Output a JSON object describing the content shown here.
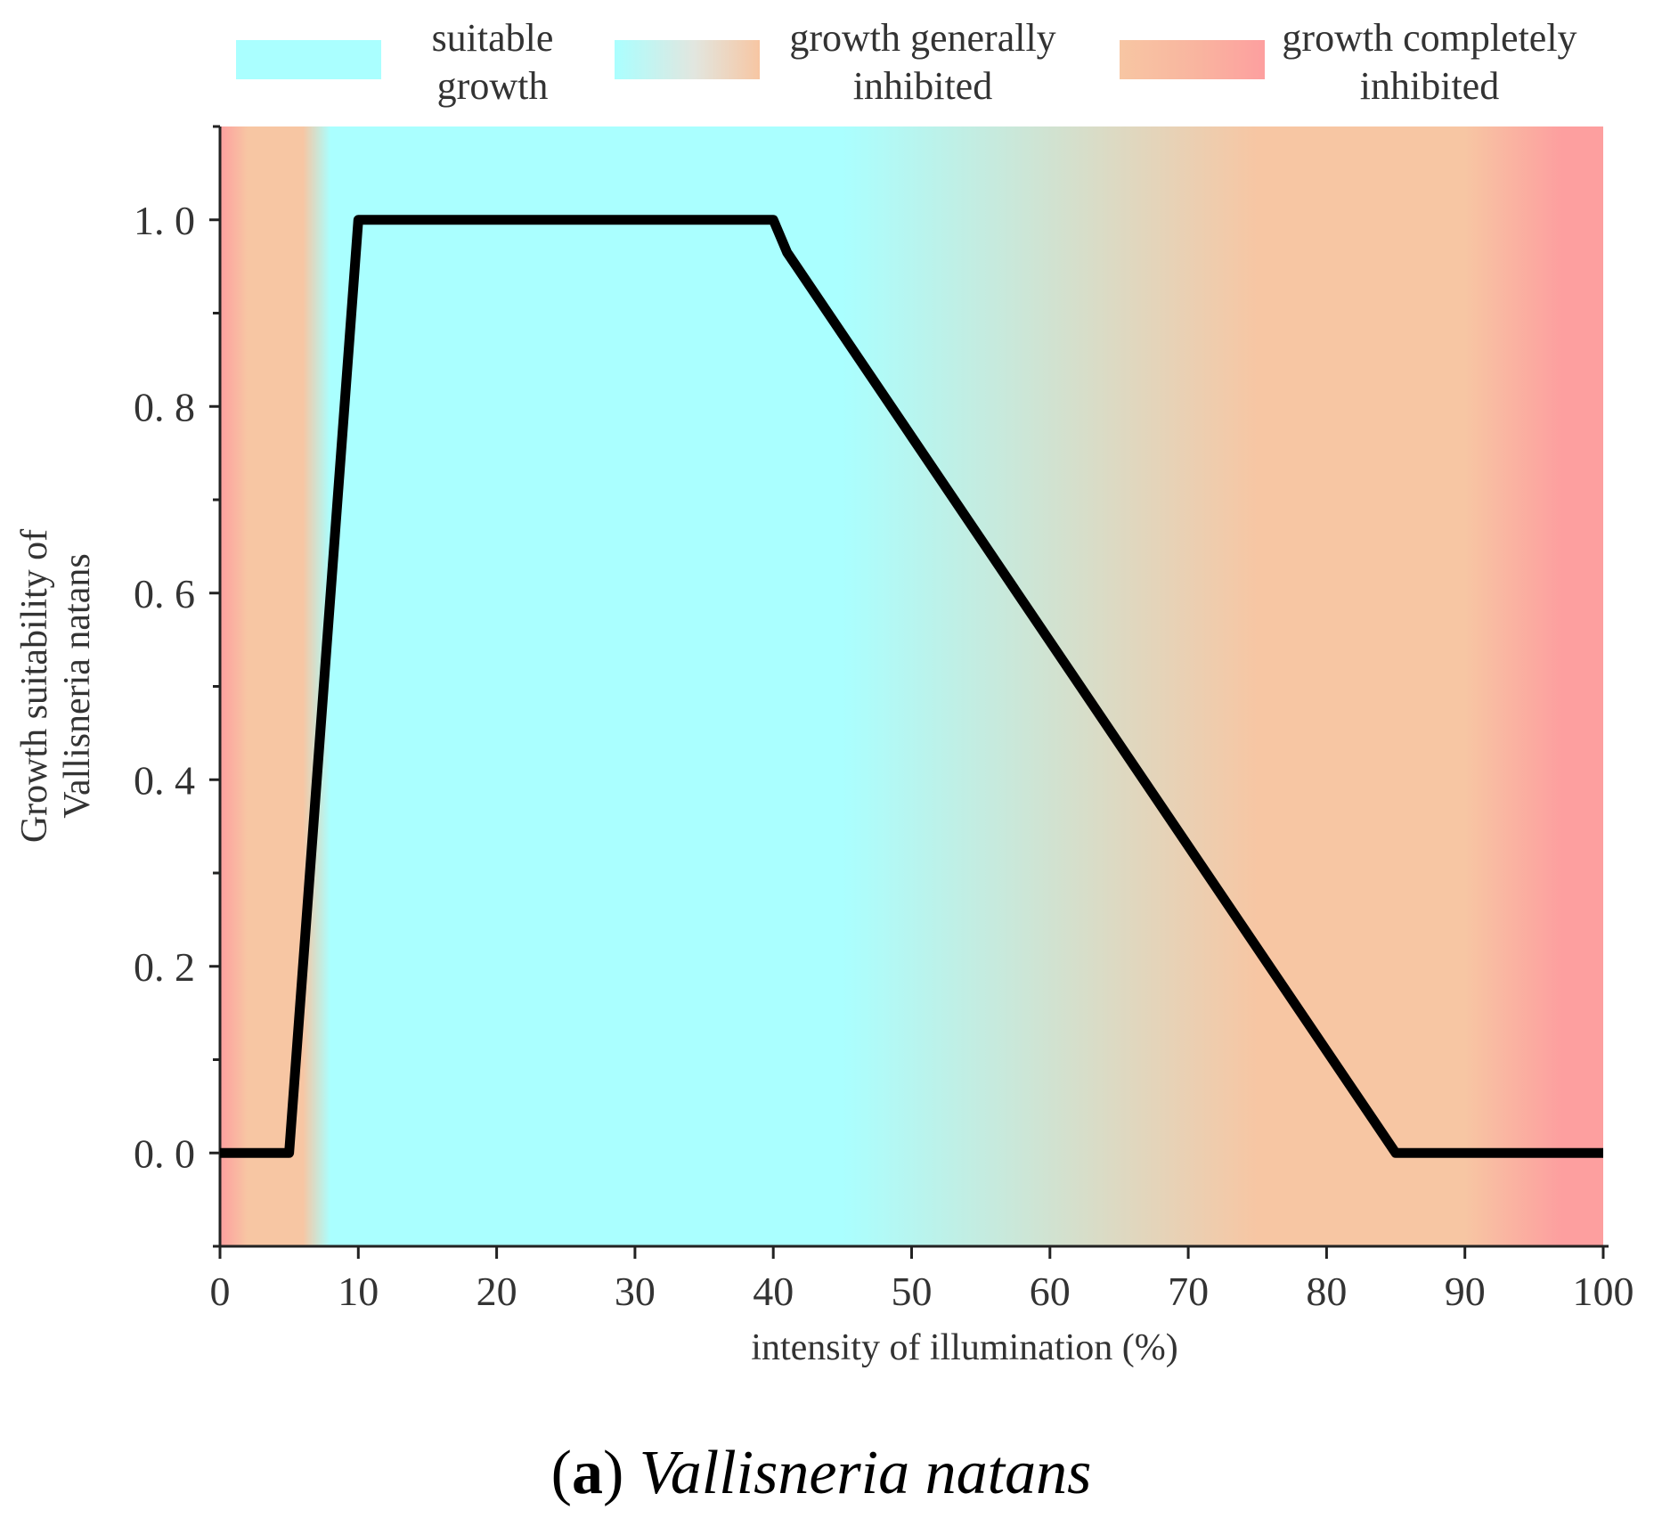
{
  "chart_data": {
    "type": "line",
    "title": "",
    "xlabel": "intensity of illumination (%)",
    "ylabel_lines": [
      "Growth suitability of",
      "Vallisneria natans"
    ],
    "xlim": [
      0,
      100
    ],
    "ylim": [
      -0.1,
      1.1
    ],
    "x_ticks": [
      0,
      10,
      20,
      30,
      40,
      50,
      60,
      70,
      80,
      90,
      100
    ],
    "x_tick_labels": [
      "0",
      "10",
      "20",
      "30",
      "40",
      "50",
      "60",
      "70",
      "80",
      "90",
      "100"
    ],
    "y_ticks": [
      0.0,
      0.2,
      0.4,
      0.6,
      0.8,
      1.0
    ],
    "y_tick_labels": [
      "0. 0",
      "0. 2",
      "0. 4",
      "0. 6",
      "0. 8",
      "1. 0"
    ],
    "grid": false,
    "series": [
      {
        "name": "Growth suitability",
        "color": "#000000",
        "x": [
          0,
          5,
          10,
          40,
          41,
          85,
          100
        ],
        "y": [
          0.0,
          0.0,
          1.0,
          1.0,
          0.965,
          0.0,
          0.0
        ]
      }
    ],
    "background_bands": {
      "suitable_color": "#aaffff",
      "moderate_color": "#f7c6a3",
      "inhibited_color": "#fd9f9f",
      "stops": [
        {
          "x": 0,
          "color": "#fd9f9f"
        },
        {
          "x": 2,
          "color": "#f7c6a3"
        },
        {
          "x": 6,
          "color": "#f7c6a3"
        },
        {
          "x": 8,
          "color": "#aaffff"
        },
        {
          "x": 45,
          "color": "#aaffff"
        },
        {
          "x": 75,
          "color": "#f7c6a3"
        },
        {
          "x": 90,
          "color": "#f7c6a3"
        },
        {
          "x": 97,
          "color": "#fd9f9f"
        },
        {
          "x": 100,
          "color": "#fd9f9f"
        }
      ]
    },
    "legend": {
      "position": "top",
      "entries": [
        {
          "lines": [
            "suitable",
            "growth"
          ],
          "swatch": "solid-cyan"
        },
        {
          "lines": [
            "growth generally",
            "inhibited"
          ],
          "swatch": "cyan-to-peach"
        },
        {
          "lines": [
            "growth completely",
            "inhibited"
          ],
          "swatch": "peach-to-red"
        }
      ]
    }
  },
  "caption": {
    "letter": "a",
    "open": "(",
    "close": ")",
    "species": "Vallisneria natans"
  }
}
